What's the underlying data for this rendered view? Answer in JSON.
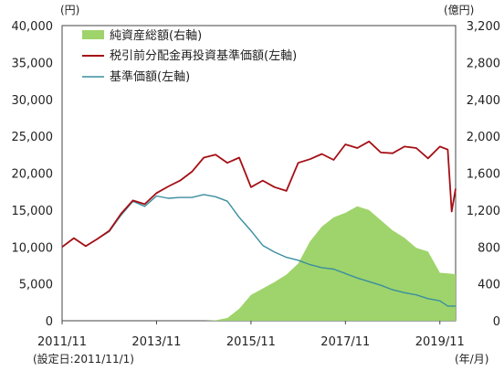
{
  "chart_data": {
    "type": "line",
    "left_unit": "(円)",
    "right_unit": "(億円)",
    "x_unit": "(年/月)",
    "setup_note": "(設定日:2011/11/1)",
    "x_ticks": [
      "2011/11",
      "2013/11",
      "2015/11",
      "2017/11",
      "2019/11"
    ],
    "y_left_ticks": [
      "0",
      "5,000",
      "10,000",
      "15,000",
      "20,000",
      "25,000",
      "30,000",
      "35,000",
      "40,000"
    ],
    "y_right_ticks": [
      "0",
      "400",
      "800",
      "1,200",
      "1,600",
      "2,000",
      "2,400",
      "2,800",
      "3,200"
    ],
    "ylim_left": [
      0,
      40000
    ],
    "ylim_right": [
      0,
      3200
    ],
    "x_range": [
      "2011-11",
      "2020-03"
    ],
    "grid": false,
    "legend_position": "top-left",
    "colors": {
      "total_assets": "#9ed46b",
      "reinvested": "#a50f15",
      "base_price": "#3a8ea0"
    },
    "series": [
      {
        "name": "純資産総額(右軸)",
        "kind": "area",
        "axis": "right",
        "x": [
          "2011-11",
          "2012-05",
          "2012-11",
          "2013-05",
          "2013-11",
          "2014-05",
          "2014-11",
          "2015-02",
          "2015-05",
          "2015-08",
          "2015-11",
          "2016-02",
          "2016-05",
          "2016-08",
          "2016-11",
          "2017-02",
          "2017-05",
          "2017-08",
          "2017-11",
          "2018-02",
          "2018-05",
          "2018-08",
          "2018-11",
          "2019-02",
          "2019-05",
          "2019-08",
          "2019-11",
          "2020-02",
          "2020-03"
        ],
        "values": [
          0,
          0,
          0,
          0,
          0,
          0,
          0,
          5,
          30,
          130,
          280,
          350,
          420,
          500,
          620,
          860,
          1020,
          1120,
          1170,
          1240,
          1200,
          1090,
          980,
          900,
          790,
          750,
          520,
          510,
          500
        ]
      },
      {
        "name": "税引前分配金再投資基準価額(左軸)",
        "kind": "line",
        "axis": "left",
        "x": [
          "2011-11",
          "2012-02",
          "2012-05",
          "2012-08",
          "2012-11",
          "2013-02",
          "2013-05",
          "2013-08",
          "2013-11",
          "2014-02",
          "2014-05",
          "2014-08",
          "2014-11",
          "2015-02",
          "2015-05",
          "2015-08",
          "2015-11",
          "2016-02",
          "2016-05",
          "2016-08",
          "2016-11",
          "2017-02",
          "2017-05",
          "2017-08",
          "2017-11",
          "2018-02",
          "2018-05",
          "2018-08",
          "2018-11",
          "2019-02",
          "2019-05",
          "2019-08",
          "2019-11",
          "2020-01",
          "2020-02",
          "2020-03"
        ],
        "values": [
          10000,
          11200,
          10100,
          11100,
          12200,
          14500,
          16300,
          15800,
          17300,
          18200,
          19000,
          20200,
          22100,
          22500,
          21400,
          22100,
          18100,
          19000,
          18100,
          17600,
          21400,
          21900,
          22600,
          21800,
          23900,
          23400,
          24300,
          22800,
          22700,
          23600,
          23400,
          22000,
          23600,
          23200,
          14800,
          17900
        ]
      },
      {
        "name": "基準価額(左軸)",
        "kind": "line",
        "axis": "left",
        "x": [
          "2011-11",
          "2012-02",
          "2012-05",
          "2012-08",
          "2012-11",
          "2013-02",
          "2013-05",
          "2013-08",
          "2013-11",
          "2014-02",
          "2014-05",
          "2014-08",
          "2014-11",
          "2015-02",
          "2015-05",
          "2015-08",
          "2015-11",
          "2016-02",
          "2016-05",
          "2016-08",
          "2016-11",
          "2017-02",
          "2017-05",
          "2017-08",
          "2017-11",
          "2018-02",
          "2018-05",
          "2018-08",
          "2018-11",
          "2019-02",
          "2019-05",
          "2019-08",
          "2019-11",
          "2020-01",
          "2020-03"
        ],
        "values": [
          10000,
          11200,
          10100,
          11100,
          12100,
          14300,
          16200,
          15500,
          16900,
          16600,
          16700,
          16700,
          17100,
          16800,
          16200,
          14000,
          12200,
          10200,
          9300,
          8600,
          8200,
          7600,
          7200,
          7000,
          6400,
          5800,
          5300,
          4800,
          4200,
          3800,
          3500,
          3000,
          2700,
          2000,
          2000
        ]
      }
    ]
  }
}
